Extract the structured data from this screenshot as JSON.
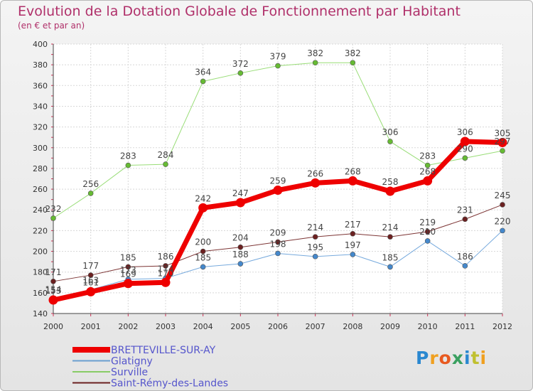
{
  "chart_data": {
    "type": "line",
    "title": "Evolution de la Dotation Globale de Fonctionnement par Habitant",
    "subtitle": "(en € et par an)",
    "xlabel": "",
    "ylabel": "",
    "ylim": [
      140,
      400
    ],
    "y_ticks": [
      140,
      160,
      180,
      200,
      220,
      240,
      260,
      280,
      300,
      320,
      340,
      360,
      380,
      400
    ],
    "x": [
      "2000",
      "2001",
      "2002",
      "2003",
      "2004",
      "2005",
      "2006",
      "2007",
      "2008",
      "2009",
      "2010",
      "2011",
      "2012"
    ],
    "grid": true,
    "legend_position": "bottom-left",
    "series": [
      {
        "name": "Saint-Rémy-des-Landes",
        "color": "#6b2020",
        "stroke": "#7d3535",
        "width": 1,
        "values": [
          171,
          177,
          185,
          186,
          200,
          204,
          209,
          214,
          217,
          214,
          219,
          231,
          245
        ],
        "labels": [
          "171",
          "177",
          "185",
          "186",
          "200",
          "204",
          "209",
          "214",
          "217",
          "214",
          "219",
          "231",
          "245"
        ]
      },
      {
        "name": "Surville",
        "color": "#66bb33",
        "stroke": "#99dd77",
        "width": 1,
        "values": [
          232,
          256,
          283,
          284,
          364,
          372,
          379,
          382,
          382,
          306,
          283,
          290,
          297
        ],
        "labels": [
          "232",
          "256",
          "283",
          "284",
          "364",
          "372",
          "379",
          "382",
          "382",
          "306",
          "283",
          "290",
          "297"
        ]
      },
      {
        "name": "Glatigny",
        "color": "#4488cc",
        "stroke": "#77aadd",
        "width": 1,
        "values": [
          154,
          163,
          173,
          174,
          185,
          188,
          198,
          195,
          197,
          185,
          210,
          186,
          220
        ],
        "labels": [
          "154",
          "163",
          "173",
          "174",
          "185",
          "188",
          "198",
          "195",
          "197",
          "185",
          "210",
          "186",
          "220"
        ]
      },
      {
        "name": "BRETTEVILLE-SUR-AY",
        "color": "#ee0000",
        "stroke": "#ee0000",
        "width": 7,
        "values": [
          153,
          161,
          169,
          170,
          242,
          247,
          259,
          266,
          268,
          258,
          268,
          306,
          305
        ],
        "labels": [
          "153",
          "161",
          "169",
          "170",
          "242",
          "247",
          "259",
          "266",
          "268",
          "258",
          "268",
          "306",
          "305"
        ]
      }
    ],
    "legend": [
      {
        "name": "BRETTEVILLE-SUR-AY",
        "color": "#ee0000"
      },
      {
        "name": "Glatigny",
        "color": "#6a9fcf"
      },
      {
        "name": "Surville",
        "color": "#88cc66"
      },
      {
        "name": "Saint-Rémy-des-Landes",
        "color": "#6b2020"
      }
    ]
  },
  "logo": {
    "text": "Proxiti",
    "letters": [
      "P",
      "r",
      "o",
      "x",
      "i",
      "t",
      "i"
    ],
    "colors": [
      "#2a88d0",
      "#f0a020",
      "#e85a20",
      "#3aa060",
      "#2a88d0",
      "#c0c030",
      "#f0a020"
    ]
  }
}
